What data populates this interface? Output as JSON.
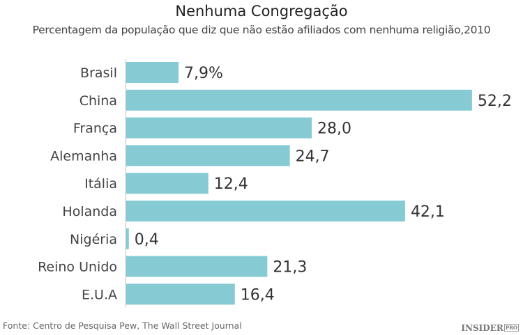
{
  "chart_data": {
    "type": "bar",
    "orientation": "horizontal",
    "title": "Nenhuma Congregação",
    "subtitle": "Percentagem da população que diz que não estão afiliados com nenhuma religião,2010",
    "categories": [
      "Brasil",
      "China",
      "França",
      "Alemanha",
      "Itália",
      "Holanda",
      "Nigéria",
      "Reino Unido",
      "E.U.A"
    ],
    "values": [
      7.9,
      52.2,
      28.0,
      24.7,
      12.4,
      42.1,
      0.4,
      21.3,
      16.4
    ],
    "data_labels": [
      "7,9%",
      "52,2",
      "28,0",
      "24,7",
      "12,4",
      "42,1",
      "0,4",
      "21,3",
      "16,4"
    ],
    "xlabel": "",
    "ylabel": "",
    "xlim": [
      0,
      55
    ],
    "grid": false,
    "bar_color": "#86cbd4"
  },
  "footer": {
    "source": "Fonte: Centro de Pesquisa Pew, The Wall Street Journal",
    "logo": "INSIDER PRO"
  }
}
